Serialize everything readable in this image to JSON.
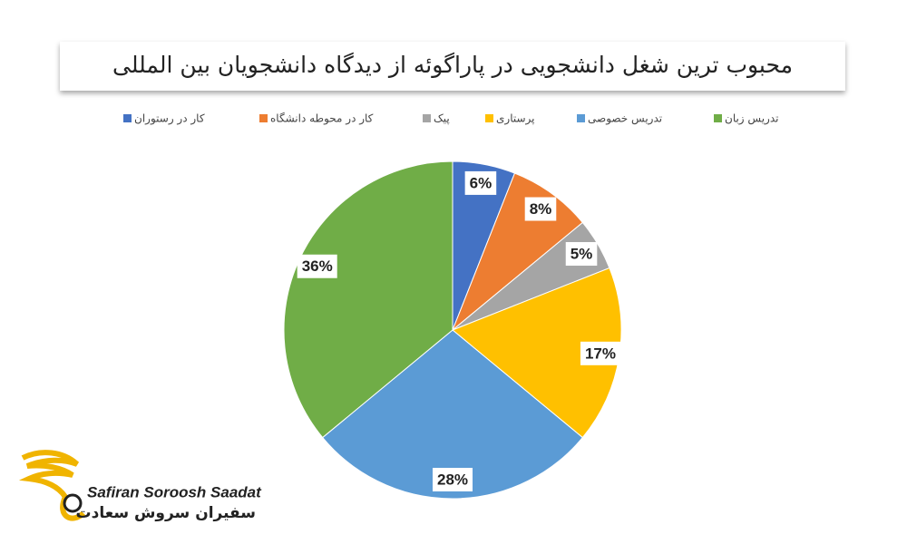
{
  "chart_data": {
    "type": "pie",
    "title": "محبوب ترین شغل دانشجویی در پاراگوئه از دیدگاه دانشجویان بین المللی",
    "categories": [
      "کار در رستوران",
      "کار در محوطه دانشگاه",
      "پیک",
      "پرستاری",
      "تدریس خصوصی",
      "تدریس زبان"
    ],
    "values": [
      6,
      8,
      5,
      17,
      28,
      36
    ],
    "value_labels": [
      "6%",
      "8%",
      "5%",
      "17%",
      "28%",
      "36%"
    ],
    "colors": [
      "#4472c4",
      "#ed7d31",
      "#a5a5a5",
      "#ffc000",
      "#5b9bd5",
      "#70ad47"
    ],
    "legend": "top"
  },
  "logo": {
    "latin": "Safiran Soroosh Saadat",
    "persian": "سفیران سروش سعادت"
  }
}
